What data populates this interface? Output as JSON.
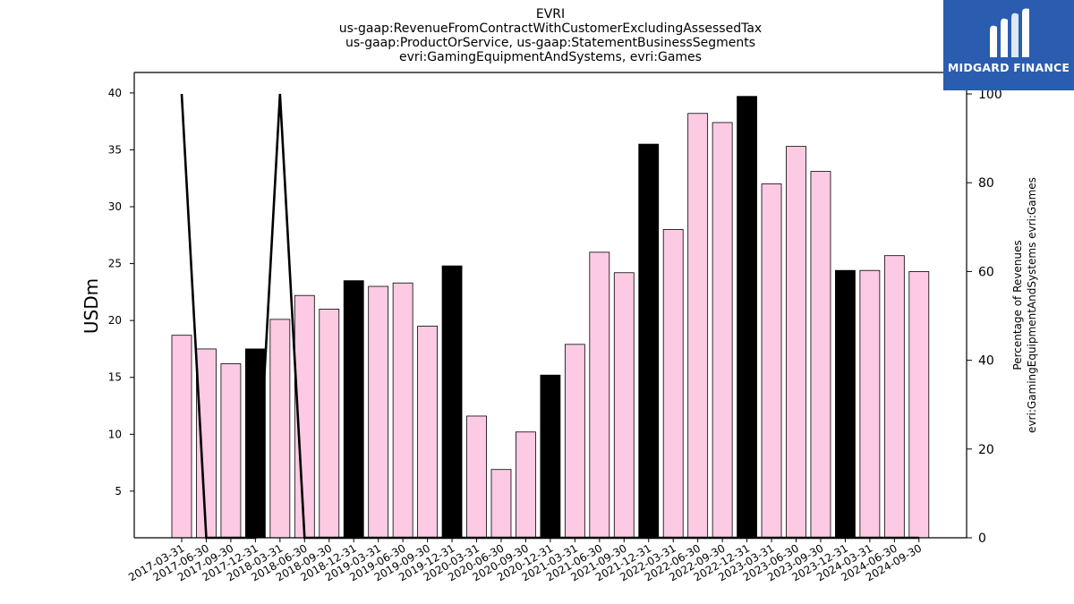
{
  "chart_data": {
    "type": "bar",
    "title_lines": [
      "EVRI",
      "us-gaap:RevenueFromContractWithCustomerExcludingAssessedTax",
      "us-gaap:ProductOrService, us-gaap:StatementBusinessSegments",
      "evri:GamingEquipmentAndSystems, evri:Games"
    ],
    "ylabel": "USDm",
    "ylabel_right_lines": [
      "Percentage of Revenues",
      "evri:GamingEquipmentAndSystems evri:Games"
    ],
    "categories": [
      "2017-03-31",
      "2017-06-30",
      "2017-09-30",
      "2017-12-31",
      "2018-03-31",
      "2018-06-30",
      "2018-09-30",
      "2018-12-31",
      "2019-03-31",
      "2019-06-30",
      "2019-09-30",
      "2019-12-31",
      "2020-03-31",
      "2020-06-30",
      "2020-09-30",
      "2020-12-31",
      "2021-03-31",
      "2021-06-30",
      "2021-09-30",
      "2021-12-31",
      "2022-03-31",
      "2022-06-30",
      "2022-09-30",
      "2022-12-31",
      "2023-03-31",
      "2023-06-30",
      "2023-09-30",
      "2023-12-31",
      "2024-03-31",
      "2024-06-30",
      "2024-09-30"
    ],
    "series": [
      {
        "values": [
          18.7,
          17.5,
          16.2,
          17.5,
          20.1,
          22.2,
          21.0,
          23.5,
          23.0,
          23.3,
          19.5,
          24.8,
          11.6,
          6.9,
          10.2,
          15.2,
          17.9,
          26.0,
          24.2,
          35.5,
          28.0,
          38.2,
          37.4,
          39.7,
          32.0,
          35.3,
          33.1,
          24.4,
          24.4,
          25.7,
          24.3
        ],
        "highlight": [
          false,
          false,
          false,
          true,
          false,
          false,
          false,
          true,
          false,
          false,
          false,
          true,
          false,
          false,
          false,
          true,
          false,
          false,
          false,
          true,
          false,
          false,
          false,
          true,
          false,
          false,
          false,
          true,
          false,
          false,
          false
        ],
        "color": "#fccae3",
        "highlight_color": "#000000"
      },
      {
        "axis": "right",
        "type": "line",
        "values": [
          100,
          0,
          0,
          0,
          100,
          0,
          0,
          0,
          0,
          0,
          0,
          0,
          0,
          0,
          0,
          0,
          0,
          0,
          0,
          0,
          0,
          0,
          0,
          0,
          0,
          0,
          0,
          0,
          0,
          0,
          0
        ],
        "color": "#000000"
      }
    ],
    "ylim": [
      0.9,
      41.8
    ],
    "yticks": [
      5,
      10,
      15,
      20,
      25,
      30,
      35,
      40
    ],
    "y2lim": [
      0,
      100
    ],
    "y2ticks": [
      0,
      20,
      40,
      60,
      80,
      100
    ],
    "grid": false,
    "legend": "none"
  },
  "logo": {
    "text": "MIDGARD FINANCE",
    "background": "#2a5db0"
  }
}
